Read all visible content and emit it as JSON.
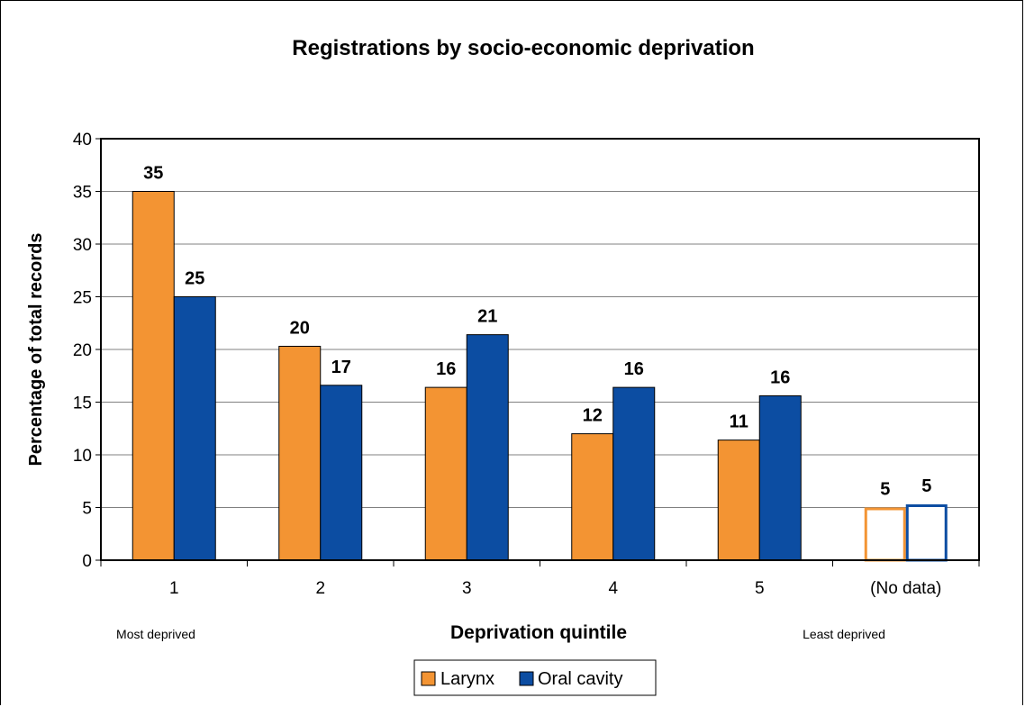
{
  "chart_data": {
    "type": "bar",
    "title": "Registrations by socio-economic deprivation",
    "xlabel": "Deprivation quintile",
    "ylabel": "Percentage of total records",
    "categories": [
      "1",
      "2",
      "3",
      "4",
      "5",
      "(No data)"
    ],
    "series": [
      {
        "name": "Larynx",
        "values": [
          35,
          20.3,
          16.4,
          12,
          11.4,
          5
        ],
        "labels": [
          "35",
          "20",
          "16",
          "12",
          "11",
          "5"
        ],
        "color": "#F39433"
      },
      {
        "name": "Oral cavity",
        "values": [
          25,
          16.6,
          21.4,
          16.4,
          15.6,
          5.3
        ],
        "labels": [
          "25",
          "17",
          "21",
          "16",
          "16",
          "5"
        ],
        "color": "#0C4DA2"
      }
    ],
    "hollow_categories": [
      "(No data)"
    ],
    "ylim": [
      0,
      40
    ],
    "yticks": [
      "0",
      "5",
      "10",
      "15",
      "20",
      "25",
      "30",
      "35",
      "40"
    ],
    "grid": true,
    "legend": "bottom-center",
    "annotations": {
      "left": "Most deprived",
      "right": "Least deprived"
    }
  }
}
